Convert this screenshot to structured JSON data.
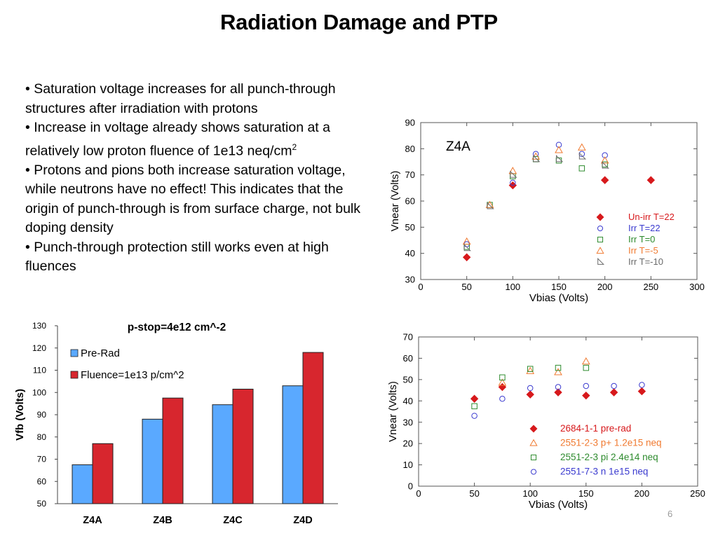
{
  "slide": {
    "title": "Radiation Damage and PTP",
    "bullets": [
      "• Saturation voltage increases for all punch-through structures after irradiation with protons",
      "• Increase in voltage already shows saturation at a relatively low proton fluence of 1e13 neq/cm",
      "• Protons and pions both increase saturation voltage, while neutrons have no effect! This indicates that the origin of punch-through is from surface charge, not bulk doping density",
      "• Punch-through protection still works even at high fluences"
    ],
    "bullet2_sup": "2",
    "page_number": "6"
  },
  "chart_data": [
    {
      "type": "scatter",
      "title": "Z4A",
      "xlabel": "Vbias (Volts)",
      "ylabel": "Vnear (Volts)",
      "xlim": [
        0,
        300
      ],
      "ylim": [
        30,
        90
      ],
      "xticks": [
        0,
        50,
        100,
        150,
        200,
        250,
        300
      ],
      "yticks": [
        30,
        40,
        50,
        60,
        70,
        80,
        90
      ],
      "grid": false,
      "legend_position": "bottom-right",
      "series": [
        {
          "name": "Un-irr T=22",
          "marker": "diamond",
          "color": "#d7191c",
          "x": [
            50,
            100,
            200,
            250
          ],
          "y": [
            38.5,
            66,
            68,
            68
          ]
        },
        {
          "name": "Irr T=22",
          "marker": "circle",
          "color": "#3b3bcf",
          "x": [
            50,
            100,
            125,
            150,
            175,
            200
          ],
          "y": [
            43.5,
            67,
            78,
            81.5,
            78,
            77.5
          ]
        },
        {
          "name": "Irr T=0",
          "marker": "square",
          "color": "#2e8b2e",
          "x": [
            50,
            75,
            100,
            125,
            150,
            175,
            200
          ],
          "y": [
            42.5,
            58.5,
            69.5,
            76,
            75.5,
            72.5,
            74
          ]
        },
        {
          "name": "Irr T=-5",
          "marker": "triangle",
          "color": "#f07a30",
          "x": [
            50,
            75,
            100,
            125,
            150,
            175,
            200
          ],
          "y": [
            44.5,
            58.5,
            71.5,
            77,
            79.5,
            80.5,
            75.5
          ]
        },
        {
          "name": "Irr T=-10",
          "marker": "corner",
          "color": "#6a6a6a",
          "x": [
            50,
            75,
            100,
            125,
            150,
            175,
            200
          ],
          "y": [
            42,
            58,
            70,
            76,
            76,
            77,
            73.5
          ]
        }
      ]
    },
    {
      "type": "bar",
      "title": "p-stop=4e12 cm^-2",
      "xlabel": "",
      "ylabel": "Vfb (Volts)",
      "ylim": [
        50,
        130
      ],
      "yticks": [
        50,
        60,
        70,
        80,
        90,
        100,
        110,
        120,
        130
      ],
      "grid": false,
      "legend_position": "top-left",
      "categories": [
        "Z4A",
        "Z4B",
        "Z4C",
        "Z4D"
      ],
      "series": [
        {
          "name": "Pre-Rad",
          "color": "#5aa9ff",
          "values": [
            67.5,
            88,
            94.5,
            103
          ]
        },
        {
          "name": "Fluence=1e13 p/cm^2",
          "color": "#d7262e",
          "values": [
            77,
            97.5,
            101.5,
            118
          ]
        }
      ]
    },
    {
      "type": "scatter",
      "title": "",
      "xlabel": "Vbias (Volts)",
      "ylabel": "Vnear (Volts)",
      "xlim": [
        0,
        250
      ],
      "ylim": [
        0,
        70
      ],
      "xticks": [
        0,
        50,
        100,
        150,
        200,
        250
      ],
      "yticks": [
        0,
        10,
        20,
        30,
        40,
        50,
        60,
        70
      ],
      "grid": false,
      "legend_position": "bottom-right",
      "series": [
        {
          "name": "2684-1-1 pre-rad",
          "marker": "diamond",
          "color": "#d7191c",
          "x": [
            50,
            75,
            100,
            125,
            150,
            175,
            200
          ],
          "y": [
            41,
            46.5,
            43,
            44,
            42.5,
            44,
            44.5
          ]
        },
        {
          "name": "2551-2-3 p+ 1.2e15 neq",
          "marker": "triangle",
          "color": "#f07a30",
          "x": [
            75,
            100,
            125,
            150
          ],
          "y": [
            48.5,
            54,
            53.5,
            58.5
          ]
        },
        {
          "name": "2551-2-3 pi 2.4e14 neq",
          "marker": "square",
          "color": "#2e8b2e",
          "x": [
            50,
            75,
            100,
            125,
            150
          ],
          "y": [
            37.5,
            51,
            55,
            55.5,
            55.5
          ]
        },
        {
          "name": "2551-7-3 n 1e15 neq",
          "marker": "circle",
          "color": "#3b3bcf",
          "x": [
            50,
            75,
            100,
            125,
            150,
            175,
            200
          ],
          "y": [
            33,
            41,
            46,
            46.5,
            47,
            47,
            47.5
          ]
        }
      ]
    }
  ]
}
